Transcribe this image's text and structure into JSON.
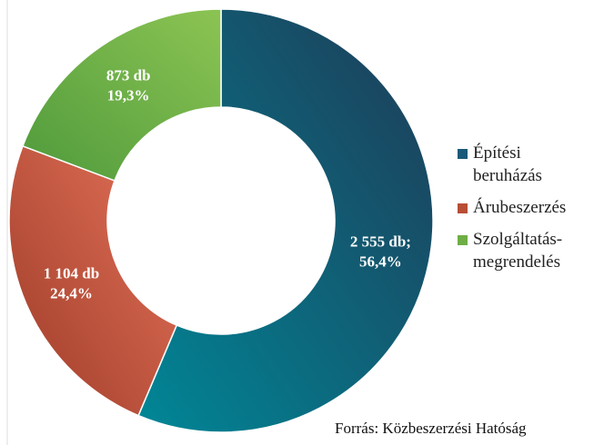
{
  "chart_data": {
    "type": "donut",
    "categories": [
      "Építési beruházás",
      "Árubeszerzés",
      "Szolgáltatás-megrendelés"
    ],
    "values": [
      2555,
      1104,
      873
    ],
    "value_labels": [
      "2 555 db;",
      "1 104 db",
      "873 db"
    ],
    "percents": [
      56.4,
      24.4,
      19.3
    ],
    "percent_labels": [
      "56,4%",
      "24,4%",
      "19,3%"
    ],
    "colors": [
      "#1a5a78",
      "#b84e35",
      "#6fae45"
    ],
    "legend": "right",
    "source": "Forrás: Közbeszerzési Hatóság"
  }
}
